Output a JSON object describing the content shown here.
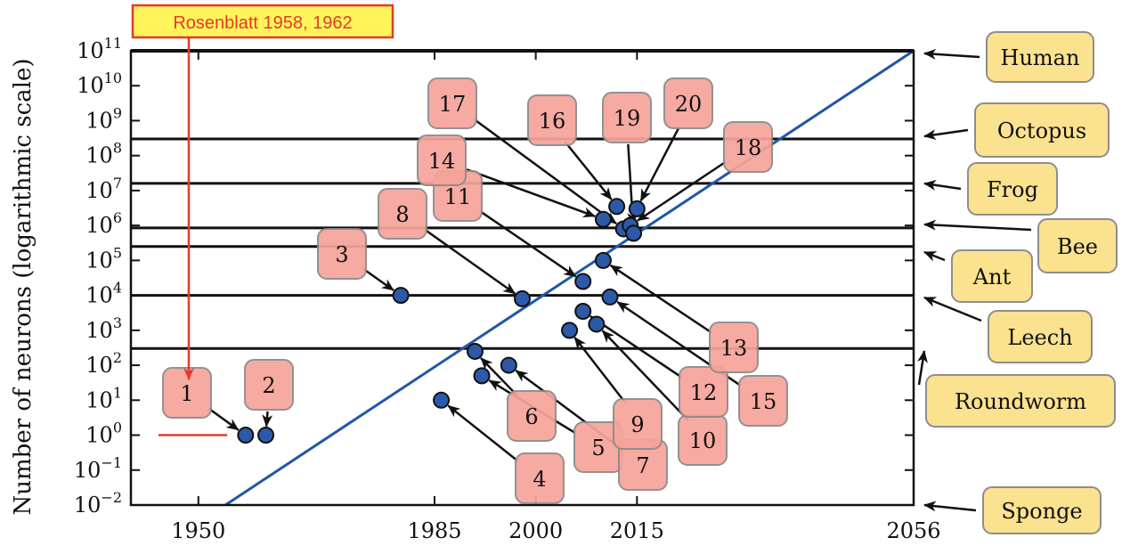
{
  "chart_data": {
    "type": "scatter",
    "ylabel": "Number of neurons (logarithmic scale)",
    "xlabel": "",
    "x_ticks": [
      1950,
      1985,
      2000,
      2015,
      2056
    ],
    "y_ticks": [
      "10^-2",
      "10^-1",
      "10^0",
      "10^1",
      "10^2",
      "10^3",
      "10^4",
      "10^5",
      "10^6",
      "10^7",
      "10^8",
      "10^9",
      "10^10",
      "10^11"
    ],
    "y_scale": "log",
    "xlim": [
      1940,
      2056
    ],
    "ylim": [
      0.01,
      100000000000
    ],
    "grid": false,
    "trend_line": {
      "x": [
        1954,
        2056
      ],
      "y": [
        0.01,
        100000000000
      ],
      "color": "#2057a6"
    },
    "points": [
      {
        "id": "1",
        "x": 1957,
        "y": 1
      },
      {
        "id": "2",
        "x": 1960,
        "y": 1
      },
      {
        "id": "3",
        "x": 1980,
        "y": 10000
      },
      {
        "id": "4",
        "x": 1986,
        "y": 10
      },
      {
        "id": "5",
        "x": 1992,
        "y": 50
      },
      {
        "id": "6",
        "x": 1991,
        "y": 250
      },
      {
        "id": "7",
        "x": 1996,
        "y": 100
      },
      {
        "id": "8",
        "x": 1998,
        "y": 8000
      },
      {
        "id": "9",
        "x": 2005,
        "y": 1000
      },
      {
        "id": "10",
        "x": 2009,
        "y": 1500
      },
      {
        "id": "11",
        "x": 2007,
        "y": 25000
      },
      {
        "id": "12",
        "x": 2007,
        "y": 3500
      },
      {
        "id": "13",
        "x": 2010,
        "y": 100000
      },
      {
        "id": "14",
        "x": 2010,
        "y": 1500000
      },
      {
        "id": "15",
        "x": 2011,
        "y": 9000
      },
      {
        "id": "16",
        "x": 2012,
        "y": 3500000
      },
      {
        "id": "17",
        "x": 2013,
        "y": 800000
      },
      {
        "id": "18",
        "x": 2014,
        "y": 1000000
      },
      {
        "id": "19",
        "x": 2014.5,
        "y": 600000
      },
      {
        "id": "20",
        "x": 2015,
        "y": 3000000
      }
    ],
    "organism_levels": [
      {
        "name": "Human",
        "y": 100000000000
      },
      {
        "name": "Octopus",
        "y": 300000000
      },
      {
        "name": "Frog",
        "y": 16000000
      },
      {
        "name": "Bee",
        "y": 850000
      },
      {
        "name": "Ant",
        "y": 250000
      },
      {
        "name": "Leech",
        "y": 10000
      },
      {
        "name": "Roundworm",
        "y": 302
      },
      {
        "name": "Sponge",
        "y": 0.01
      }
    ],
    "callout": {
      "text": "Rosenblatt 1958, 1962",
      "y": 1
    }
  },
  "colors": {
    "point_fill": "#2c5aa8",
    "label_box": "#f6a49a",
    "organism_box": "#fbe28f",
    "trend": "#2057a6",
    "callout": "#e53a2a"
  }
}
